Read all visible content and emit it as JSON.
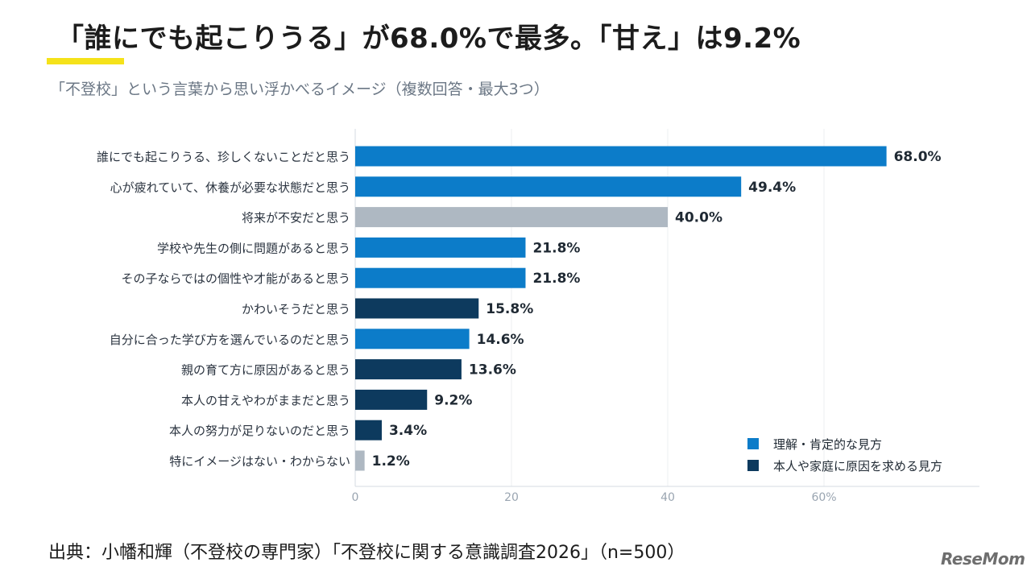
{
  "header": {
    "title": "「誰にでも起こりうる」が68.0%で最多。「甘え」は9.2%",
    "subtitle": "「不登校」という言葉から思い浮かべるイメージ（複数回答・最大3つ）"
  },
  "footer": {
    "source": "出典：小幡和輝（不登校の専門家）「不登校に関する意識調査2026」（n=500）",
    "logo": "ReseMom"
  },
  "colors": {
    "positive": "#0c7cc9",
    "negative": "#0d3a5e",
    "neutral": "#aeb8c2",
    "accent": "#f5e21a"
  },
  "chart_data": {
    "type": "bar",
    "orientation": "horizontal",
    "categories": [
      "誰にでも起こりうる、珍しくないことだと思う",
      "心が疲れていて、休養が必要な状態だと思う",
      "将来が不安だと思う",
      "学校や先生の側に問題があると思う",
      "その子ならではの個性や才能があると思う",
      "かわいそうだと思う",
      "自分に合った学び方を選んでいるのだと思う",
      "親の育て方に原因があると思う",
      "本人の甘えやわがままだと思う",
      "本人の努力が足りないのだと思う",
      "特にイメージはない・わからない"
    ],
    "values": [
      68.0,
      49.4,
      40.0,
      21.8,
      21.8,
      15.8,
      14.6,
      13.6,
      9.2,
      3.4,
      1.2
    ],
    "value_labels": [
      "68.0%",
      "49.4%",
      "40.0%",
      "21.8%",
      "21.8%",
      "15.8%",
      "14.6%",
      "13.6%",
      "9.2%",
      "3.4%",
      "1.2%"
    ],
    "groups": [
      "positive",
      "positive",
      "neutral",
      "positive",
      "positive",
      "negative",
      "positive",
      "negative",
      "negative",
      "negative",
      "neutral"
    ],
    "xlim": [
      0,
      80
    ],
    "xticks": [
      0,
      20,
      40,
      60
    ],
    "xtick_labels": [
      "0",
      "20",
      "40",
      "60%"
    ],
    "grid": true,
    "legend_position": "bottom-right",
    "legend": [
      {
        "group": "positive",
        "label": "理解・肯定的な見方"
      },
      {
        "group": "negative",
        "label": "本人や家庭に原因を求める見方"
      }
    ]
  }
}
